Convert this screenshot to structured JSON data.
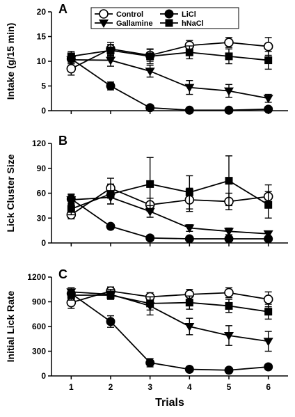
{
  "chart_data": [
    {
      "type": "line",
      "panel_label": "A",
      "ylabel": "Intake (g/15 min)",
      "xlabel": "",
      "x": [
        1,
        2,
        3,
        4,
        5,
        6
      ],
      "xlim": [
        0.5,
        6.5
      ],
      "ylim": [
        0,
        20
      ],
      "yticks": [
        0,
        5,
        10,
        15,
        20
      ],
      "yticklabels": [
        "0",
        "5",
        "10",
        "15",
        "20"
      ],
      "series": [
        {
          "name": "Control",
          "marker": "circle-open",
          "values": [
            8.5,
            12.5,
            11.2,
            13.2,
            13.8,
            13.0
          ],
          "err": [
            1.3,
            1.3,
            1.2,
            1.0,
            1.0,
            1.8
          ]
        },
        {
          "name": "LiCl",
          "marker": "circle-filled",
          "values": [
            10.5,
            5.0,
            0.6,
            0.1,
            0.1,
            0.3
          ],
          "err": [
            1.0,
            0.8,
            0.3,
            0.1,
            0.1,
            0.2
          ]
        },
        {
          "name": "Gallamine",
          "marker": "triangle-down",
          "values": [
            10.3,
            10.2,
            8.0,
            4.7,
            4.0,
            2.5
          ],
          "err": [
            0.8,
            1.2,
            1.2,
            1.4,
            1.3,
            0.8
          ]
        },
        {
          "name": "hNaCl",
          "marker": "square",
          "values": [
            11.0,
            12.2,
            11.0,
            11.8,
            11.0,
            10.2
          ],
          "err": [
            1.0,
            1.2,
            1.5,
            1.3,
            1.5,
            1.8
          ]
        }
      ],
      "legend": "top-center"
    },
    {
      "type": "line",
      "panel_label": "B",
      "ylabel": "Lick Cluster Size",
      "xlabel": "",
      "x": [
        1,
        2,
        3,
        4,
        5,
        6
      ],
      "xlim": [
        0.5,
        6.5
      ],
      "ylim": [
        0,
        120
      ],
      "yticks": [
        0,
        30,
        60,
        90,
        120
      ],
      "yticklabels": [
        "0",
        "30",
        "60",
        "90",
        "120"
      ],
      "series": [
        {
          "name": "Control",
          "marker": "circle-open",
          "values": [
            34,
            66,
            46,
            52,
            50,
            56
          ],
          "err": [
            5,
            12,
            8,
            14,
            10,
            14
          ]
        },
        {
          "name": "LiCl",
          "marker": "circle-filled",
          "values": [
            53,
            20,
            6,
            5,
            5,
            5
          ],
          "err": [
            6,
            3,
            1,
            1,
            1,
            1
          ]
        },
        {
          "name": "Gallamine",
          "marker": "triangle-down",
          "values": [
            52,
            55,
            38,
            18,
            14,
            11
          ],
          "err": [
            6,
            8,
            7,
            4,
            4,
            3
          ]
        },
        {
          "name": "hNaCl",
          "marker": "square",
          "values": [
            41,
            59,
            71,
            61,
            75,
            46
          ],
          "err": [
            7,
            12,
            32,
            20,
            30,
            16
          ]
        }
      ]
    },
    {
      "type": "line",
      "panel_label": "C",
      "ylabel": "Initial Lick Rate",
      "xlabel": "Trials",
      "x": [
        1,
        2,
        3,
        4,
        5,
        6
      ],
      "xlim": [
        0.5,
        6.5
      ],
      "ylim": [
        0,
        1200
      ],
      "yticks": [
        0,
        300,
        600,
        900,
        1200
      ],
      "yticklabels": [
        "0",
        "300",
        "600",
        "900",
        "1200"
      ],
      "xticklabels": [
        "1",
        "2",
        "3",
        "4",
        "5",
        "6"
      ],
      "series": [
        {
          "name": "Control",
          "marker": "circle-open",
          "values": [
            890,
            1030,
            960,
            990,
            1010,
            930
          ],
          "err": [
            70,
            50,
            50,
            60,
            60,
            90
          ]
        },
        {
          "name": "LiCl",
          "marker": "circle-filled",
          "values": [
            1000,
            660,
            160,
            80,
            70,
            110
          ],
          "err": [
            50,
            70,
            50,
            20,
            20,
            30
          ]
        },
        {
          "name": "Gallamine",
          "marker": "triangle-down",
          "values": [
            1020,
            990,
            850,
            600,
            490,
            420
          ],
          "err": [
            50,
            60,
            110,
            100,
            120,
            120
          ]
        },
        {
          "name": "hNaCl",
          "marker": "square",
          "values": [
            980,
            980,
            880,
            890,
            850,
            780
          ],
          "err": [
            60,
            50,
            80,
            80,
            80,
            90
          ]
        }
      ]
    }
  ],
  "legend_entries": [
    "Control",
    "LiCl",
    "Gallamine",
    "hNaCl"
  ]
}
